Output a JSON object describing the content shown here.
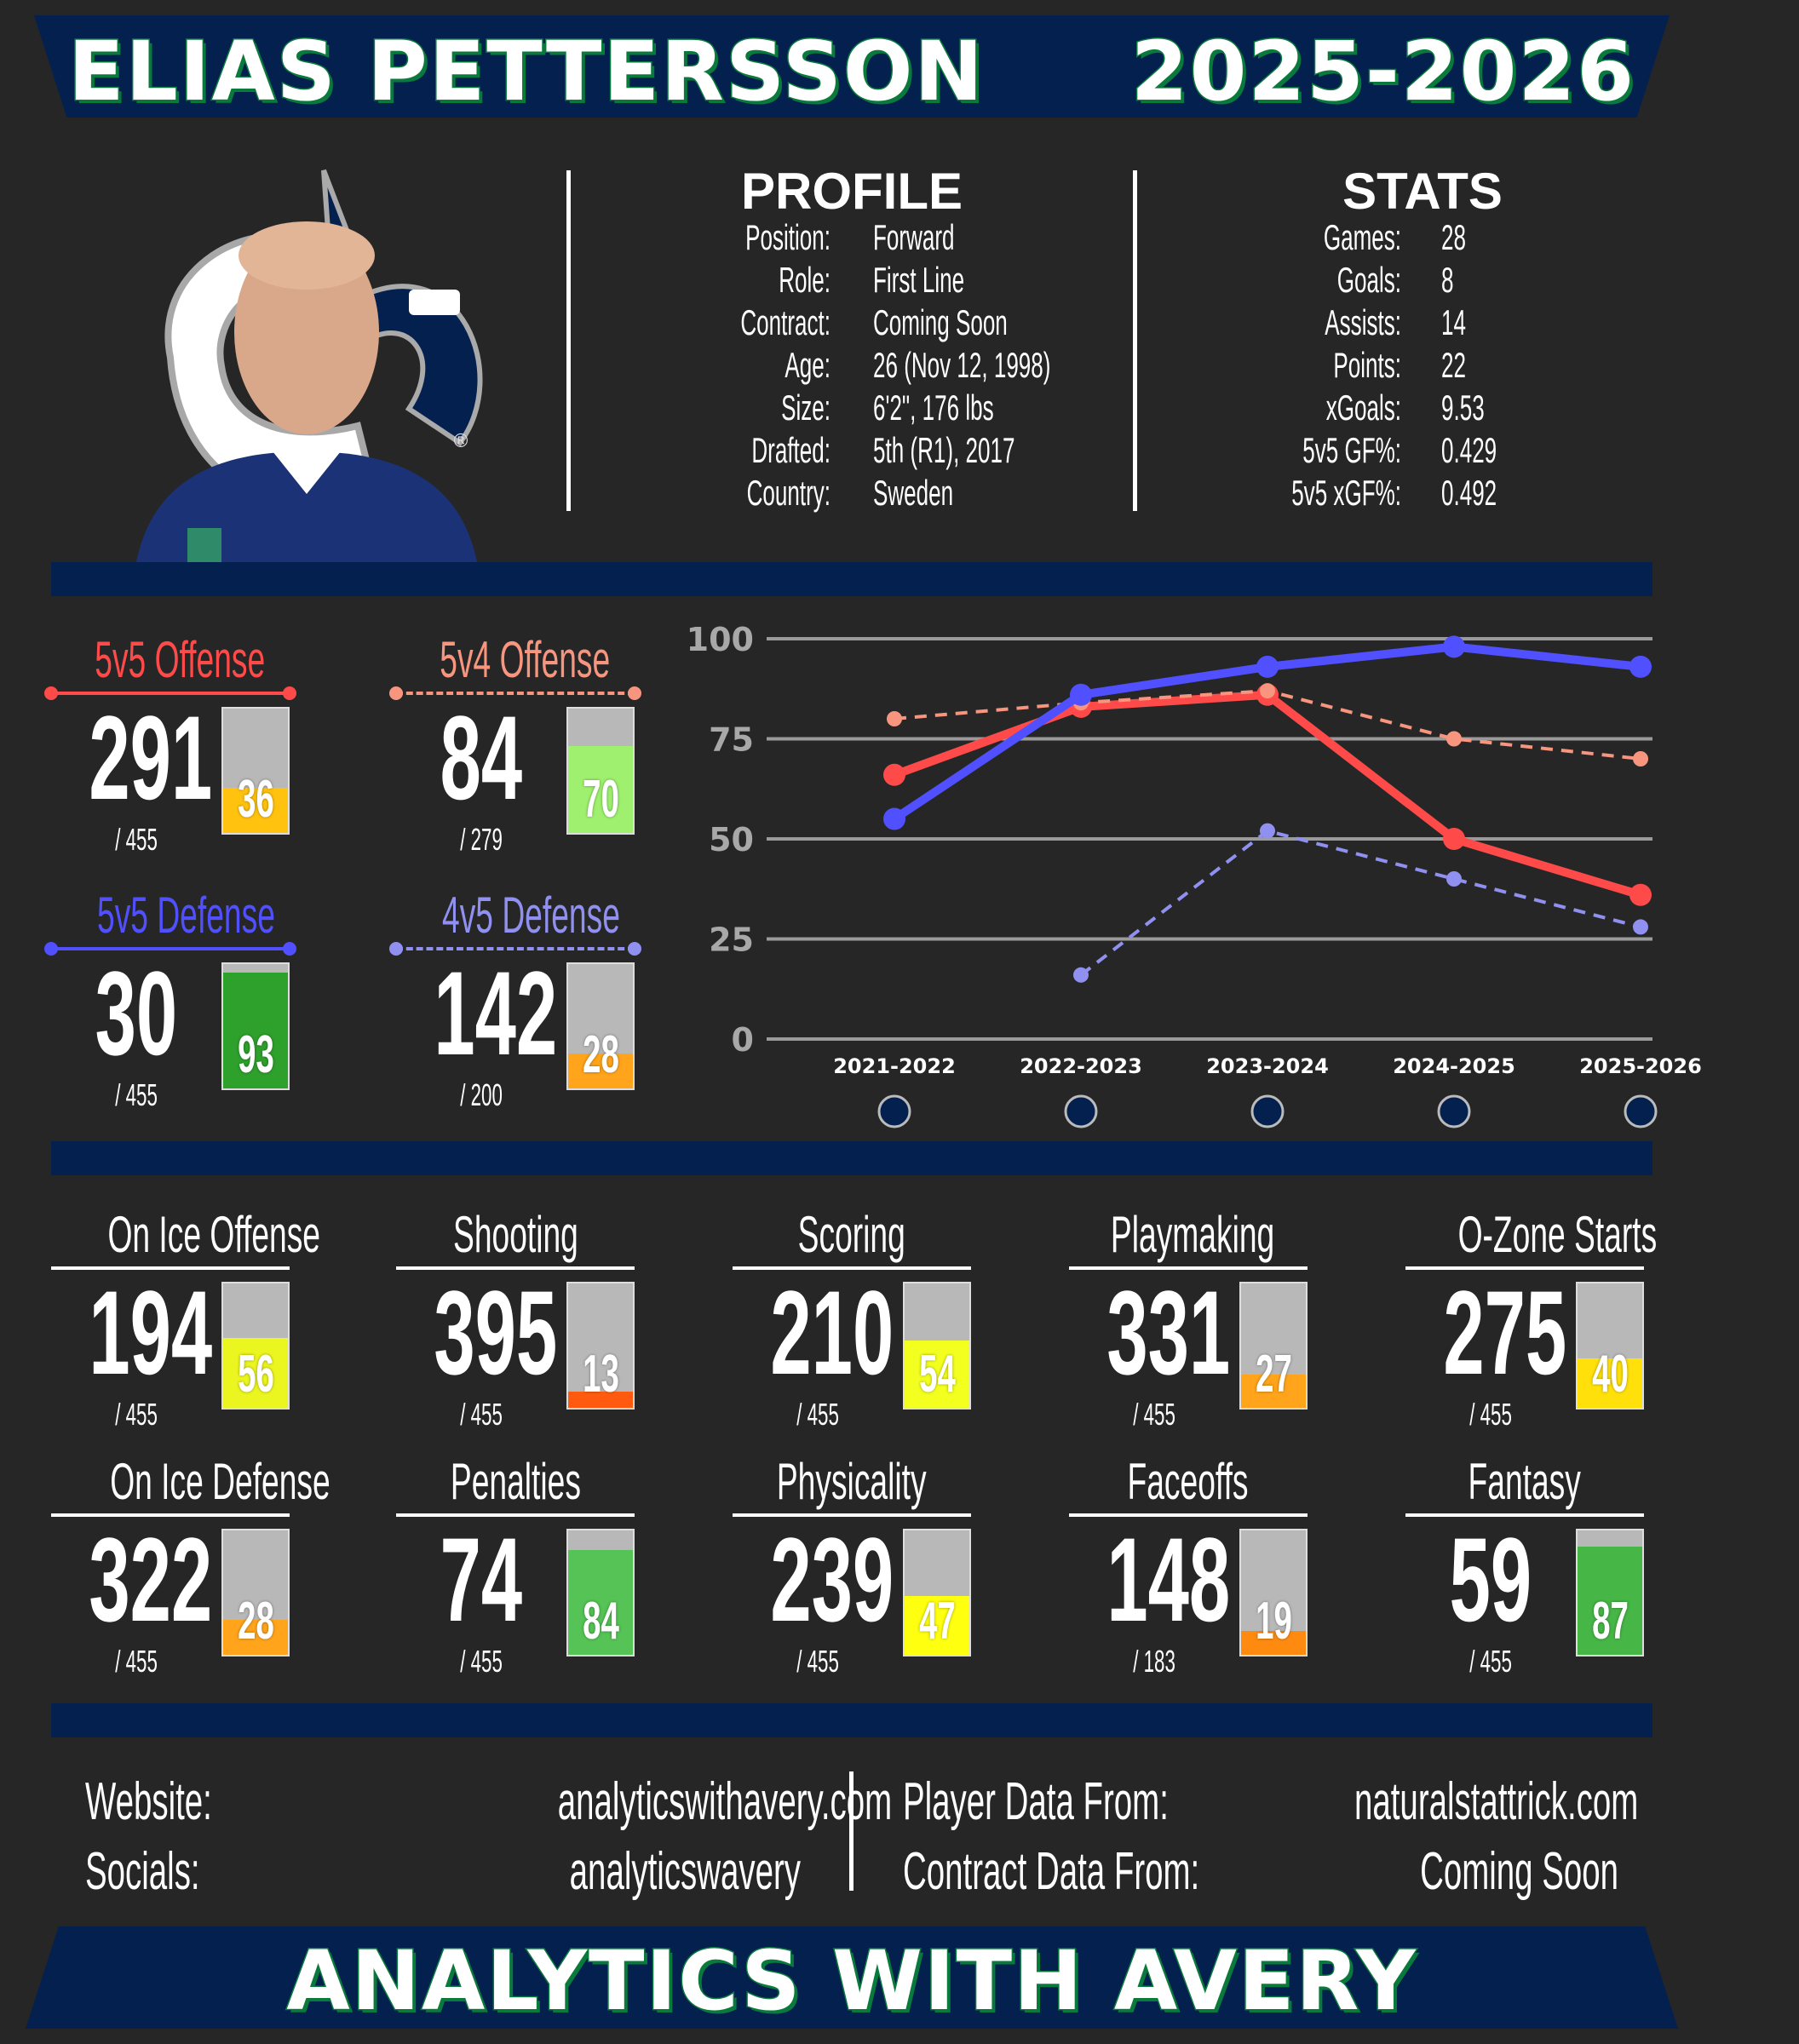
{
  "header": {
    "player_name": "ELIAS PETTERSSON",
    "season": "2025-2026"
  },
  "profile": {
    "title": "PROFILE",
    "rows": [
      {
        "key": "Position:",
        "value": "Forward"
      },
      {
        "key": "Role:",
        "value": "First Line"
      },
      {
        "key": "Contract:",
        "value": "Coming Soon"
      },
      {
        "key": "Age:",
        "value": "26 (Nov 12, 1998)"
      },
      {
        "key": "Size:",
        "value": "6'2\", 176 lbs"
      },
      {
        "key": "Drafted:",
        "value": "5th (R1), 2017"
      },
      {
        "key": "Country:",
        "value": "Sweden"
      }
    ]
  },
  "stats": {
    "title": "STATS",
    "rows": [
      {
        "key": "Games:",
        "value": "28"
      },
      {
        "key": "Goals:",
        "value": "8"
      },
      {
        "key": "Assists:",
        "value": "14"
      },
      {
        "key": "Points:",
        "value": "22"
      },
      {
        "key": "xGoals:",
        "value": "9.53"
      },
      {
        "key": "5v5 GF%:",
        "value": "0.429"
      },
      {
        "key": "5v5 xGF%:",
        "value": "0.492"
      }
    ]
  },
  "ratings": [
    {
      "label": "5v5 Offense",
      "rank": "291",
      "total": "/ 455",
      "pct": 36,
      "pct_text": "36",
      "color": "#ff4a4a",
      "dashed": false,
      "fill": "#ffc20e"
    },
    {
      "label": "5v4 Offense",
      "rank": "84",
      "total": "/ 279",
      "pct": 70,
      "pct_text": "70",
      "color": "#f7957f",
      "dashed": true,
      "fill": "#9ef06e"
    },
    {
      "label": "5v5 Defense",
      "rank": "30",
      "total": "/ 455",
      "pct": 93,
      "pct_text": "93",
      "color": "#5050ff",
      "dashed": false,
      "fill": "#2ea02c"
    },
    {
      "label": "4v5 Defense",
      "rank": "142",
      "total": "/ 200",
      "pct": 28,
      "pct_text": "28",
      "color": "#9090f0",
      "dashed": true,
      "fill": "#ffa41b"
    }
  ],
  "chart_data": {
    "type": "line",
    "categories": [
      "2021-2022",
      "2022-2023",
      "2023-2024",
      "2024-2025",
      "2025-2026"
    ],
    "ylim": [
      0,
      100
    ],
    "yticks": [
      "0",
      "25",
      "50",
      "75",
      "100"
    ],
    "grid": true,
    "series": [
      {
        "name": "5v5 Offense",
        "values": [
          66,
          83,
          86,
          50,
          36
        ],
        "color": "#ff4a4a",
        "dashed": false
      },
      {
        "name": "5v4 Offense",
        "values": [
          80,
          84,
          87,
          75,
          70
        ],
        "color": "#f7957f",
        "dashed": true
      },
      {
        "name": "5v5 Defense",
        "values": [
          55,
          86,
          93,
          98,
          93
        ],
        "color": "#5050ff",
        "dashed": false
      },
      {
        "name": "4v5 Defense",
        "values": [
          null,
          16,
          52,
          40,
          28
        ],
        "color": "#9090f0",
        "dashed": true
      }
    ]
  },
  "metrics": [
    {
      "label": "On Ice Offense",
      "rank": "194",
      "total": "/ 455",
      "pct": 56,
      "pct_text": "56",
      "fill": "#ebf51f"
    },
    {
      "label": "Shooting",
      "rank": "395",
      "total": "/ 455",
      "pct": 13,
      "pct_text": "13",
      "fill": "#ff5a10"
    },
    {
      "label": "Scoring",
      "rank": "210",
      "total": "/ 455",
      "pct": 54,
      "pct_text": "54",
      "fill": "#f3ff1f"
    },
    {
      "label": "Playmaking",
      "rank": "331",
      "total": "/ 455",
      "pct": 27,
      "pct_text": "27",
      "fill": "#ffa41b"
    },
    {
      "label": "O-Zone Starts",
      "rank": "275",
      "total": "/ 455",
      "pct": 40,
      "pct_text": "40",
      "fill": "#ffe00a"
    },
    {
      "label": "On Ice Defense",
      "rank": "322",
      "total": "/ 455",
      "pct": 28,
      "pct_text": "28",
      "fill": "#ffa41b"
    },
    {
      "label": "Penalties",
      "rank": "74",
      "total": "/ 455",
      "pct": 84,
      "pct_text": "84",
      "fill": "#55c355"
    },
    {
      "label": "Physicality",
      "rank": "239",
      "total": "/ 455",
      "pct": 47,
      "pct_text": "47",
      "fill": "#ffff10"
    },
    {
      "label": "Faceoffs",
      "rank": "148",
      "total": "/ 183",
      "pct": 19,
      "pct_text": "19",
      "fill": "#ff8a10"
    },
    {
      "label": "Fantasy",
      "rank": "59",
      "total": "/ 455",
      "pct": 87,
      "pct_text": "87",
      "fill": "#46b646"
    }
  ],
  "footer": {
    "website_label": "Website:",
    "website": "analyticswithavery.com",
    "socials_label": "Socials:",
    "socials": "analyticswavery",
    "player_data_label": "Player Data From:",
    "player_data": "naturalstattrick.com",
    "contract_data_label": "Contract Data From:",
    "contract_data": "Coming Soon",
    "brand": "ANALYTICS WITH AVERY"
  }
}
